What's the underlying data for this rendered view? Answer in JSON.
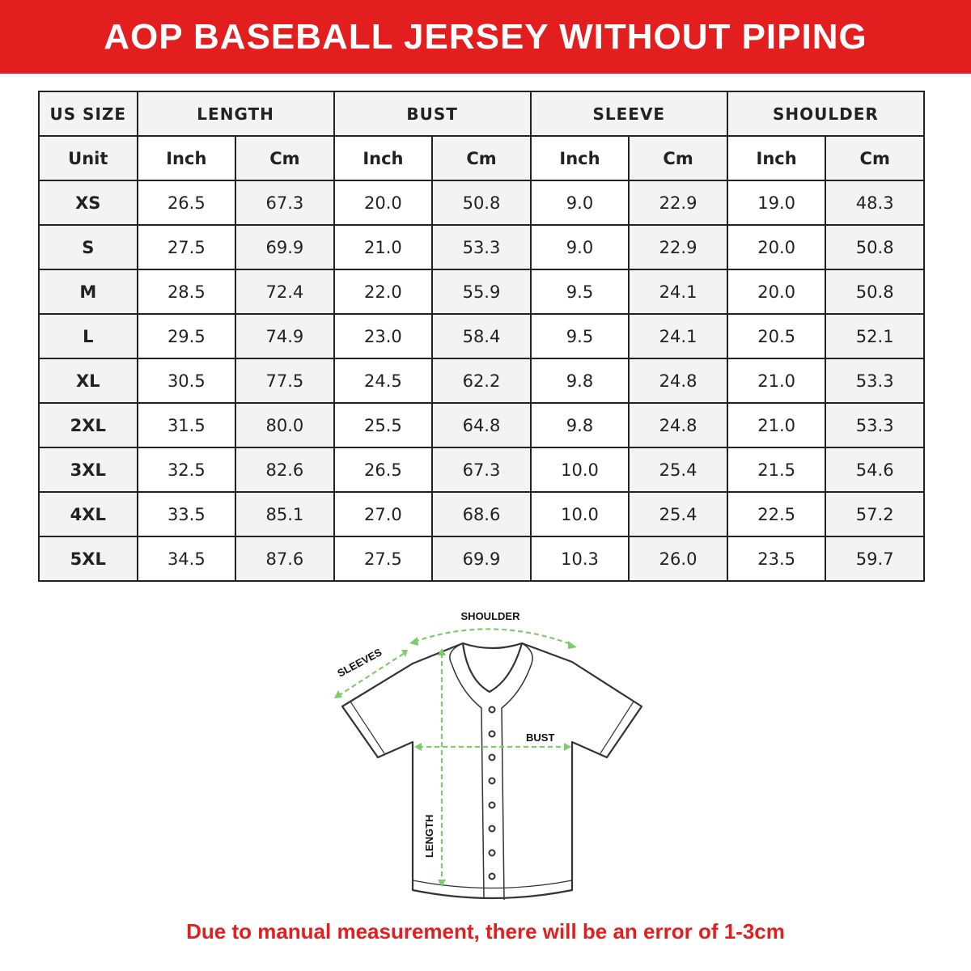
{
  "title": "AOP BASEBALL JERSEY WITHOUT PIPING",
  "colors": {
    "accent": "#e31e1e",
    "measure_arrows": "#7ecb6a"
  },
  "table": {
    "group_headers": [
      "US SIZE",
      "LENGTH",
      "BUST",
      "SLEEVE",
      "SHOULDER"
    ],
    "unit_row": [
      "Unit",
      "Inch",
      "Cm",
      "Inch",
      "Cm",
      "Inch",
      "Cm",
      "Inch",
      "Cm"
    ],
    "rows": [
      [
        "XS",
        "26.5",
        "67.3",
        "20.0",
        "50.8",
        "9.0",
        "22.9",
        "19.0",
        "48.3"
      ],
      [
        "S",
        "27.5",
        "69.9",
        "21.0",
        "53.3",
        "9.0",
        "22.9",
        "20.0",
        "50.8"
      ],
      [
        "M",
        "28.5",
        "72.4",
        "22.0",
        "55.9",
        "9.5",
        "24.1",
        "20.0",
        "50.8"
      ],
      [
        "L",
        "29.5",
        "74.9",
        "23.0",
        "58.4",
        "9.5",
        "24.1",
        "20.5",
        "52.1"
      ],
      [
        "XL",
        "30.5",
        "77.5",
        "24.5",
        "62.2",
        "9.8",
        "24.8",
        "21.0",
        "53.3"
      ],
      [
        "2XL",
        "31.5",
        "80.0",
        "25.5",
        "64.8",
        "9.8",
        "24.8",
        "21.0",
        "53.3"
      ],
      [
        "3XL",
        "32.5",
        "82.6",
        "26.5",
        "67.3",
        "10.0",
        "25.4",
        "21.5",
        "54.6"
      ],
      [
        "4XL",
        "33.5",
        "85.1",
        "27.0",
        "68.6",
        "10.0",
        "25.4",
        "22.5",
        "57.2"
      ],
      [
        "5XL",
        "34.5",
        "87.6",
        "27.5",
        "69.9",
        "10.3",
        "26.0",
        "23.5",
        "59.7"
      ]
    ]
  },
  "diagram": {
    "shoulder": "SHOULDER",
    "sleeves": "SLEEVES",
    "bust": "BUST",
    "length": "LENGTH"
  },
  "note": "Due to manual measurement, there will be an error of 1-3cm"
}
